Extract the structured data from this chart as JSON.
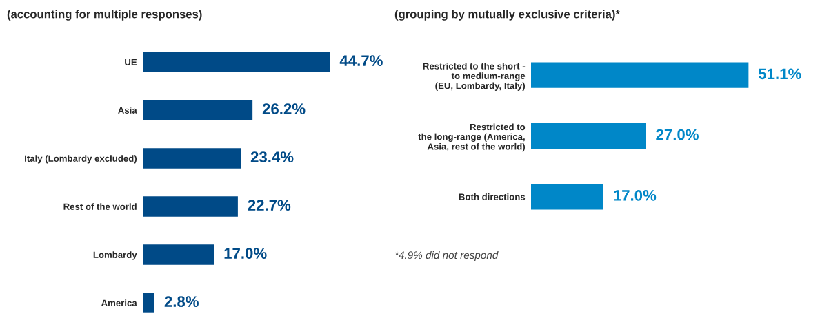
{
  "chart_data": [
    {
      "type": "bar",
      "orientation": "horizontal",
      "title": "(accounting for multiple responses)",
      "categories": [
        "UE",
        "Asia",
        "Italy (Lombardy excluded)",
        "Rest of the world",
        "Lombardy",
        "America"
      ],
      "values": [
        44.7,
        26.2,
        23.4,
        22.7,
        17.0,
        2.8
      ],
      "color": "#004a87",
      "value_labels": [
        "44.7%",
        "26.2%",
        "23.4%",
        "22.7%",
        "17.0%",
        "2.8%"
      ],
      "grid": false,
      "legend": false
    },
    {
      "type": "bar",
      "orientation": "horizontal",
      "title": "(grouping by mutually exclusive criteria)*",
      "categories": [
        "Restricted to the short -\nto medium-range\n(EU, Lombardy, Italy)",
        "Restricted to\nthe long-range (America,\nAsia, rest of the world)",
        "Both directions"
      ],
      "values": [
        51.1,
        27.0,
        17.0
      ],
      "color": "#0087c8",
      "value_labels": [
        "51.1%",
        "27.0%",
        "17.0%"
      ],
      "grid": false,
      "legend": false,
      "annotations": [
        "*4.9% did not respond"
      ]
    }
  ]
}
